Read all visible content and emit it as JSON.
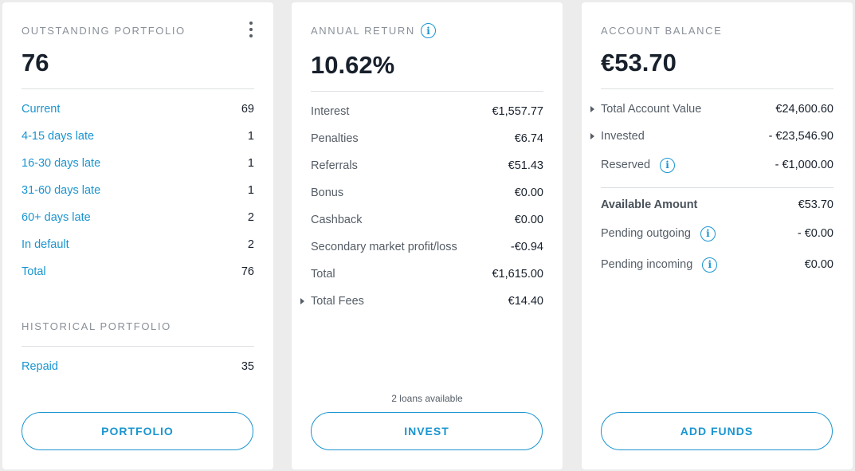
{
  "portfolio": {
    "title": "OUTSTANDING PORTFOLIO",
    "count": "76",
    "rows": [
      {
        "label": "Current",
        "value": "69"
      },
      {
        "label": "4-15 days late",
        "value": "1"
      },
      {
        "label": "16-30 days late",
        "value": "1"
      },
      {
        "label": "31-60 days late",
        "value": "1"
      },
      {
        "label": "60+ days late",
        "value": "2"
      },
      {
        "label": "In default",
        "value": "2"
      },
      {
        "label": "Total",
        "value": "76"
      }
    ],
    "historical_title": "HISTORICAL PORTFOLIO",
    "historical_rows": [
      {
        "label": "Repaid",
        "value": "35"
      }
    ],
    "button_label": "PORTFOLIO",
    "menu_icon": "kebab-menu-icon"
  },
  "annual_return": {
    "title": "ANNUAL RETURN",
    "value": "10.62%",
    "rows": [
      {
        "label": "Interest",
        "value": "€1,557.77"
      },
      {
        "label": "Penalties",
        "value": "€6.74"
      },
      {
        "label": "Referrals",
        "value": "€51.43"
      },
      {
        "label": "Bonus",
        "value": "€0.00"
      },
      {
        "label": "Cashback",
        "value": "€0.00"
      },
      {
        "label": "Secondary market profit/loss",
        "value": "-€0.94"
      },
      {
        "label": "Total",
        "value": "€1,615.00"
      },
      {
        "label": "Total Fees",
        "value": "€14.40"
      }
    ],
    "loans_note": "2 loans available",
    "button_label": "INVEST"
  },
  "account_balance": {
    "title": "ACCOUNT BALANCE",
    "value": "€53.70",
    "rows": [
      {
        "label": "Total Account Value",
        "value": "€24,600.60"
      },
      {
        "label": "Invested",
        "value": "- €23,546.90"
      },
      {
        "label": "Reserved",
        "value": "- €1,000.00"
      }
    ],
    "rows2": [
      {
        "label": "Available Amount",
        "value": "€53.70"
      },
      {
        "label": "Pending outgoing",
        "value": "- €0.00"
      },
      {
        "label": "Pending incoming",
        "value": "€0.00"
      }
    ],
    "button_label": "ADD FUNDS"
  },
  "icons": {
    "info": "info-icon",
    "caret": "caret-right-icon"
  },
  "colors": {
    "accent": "#1a95d0",
    "background": "#ececec",
    "card": "#ffffff",
    "text": "#18202c",
    "muted": "#8a9099"
  }
}
